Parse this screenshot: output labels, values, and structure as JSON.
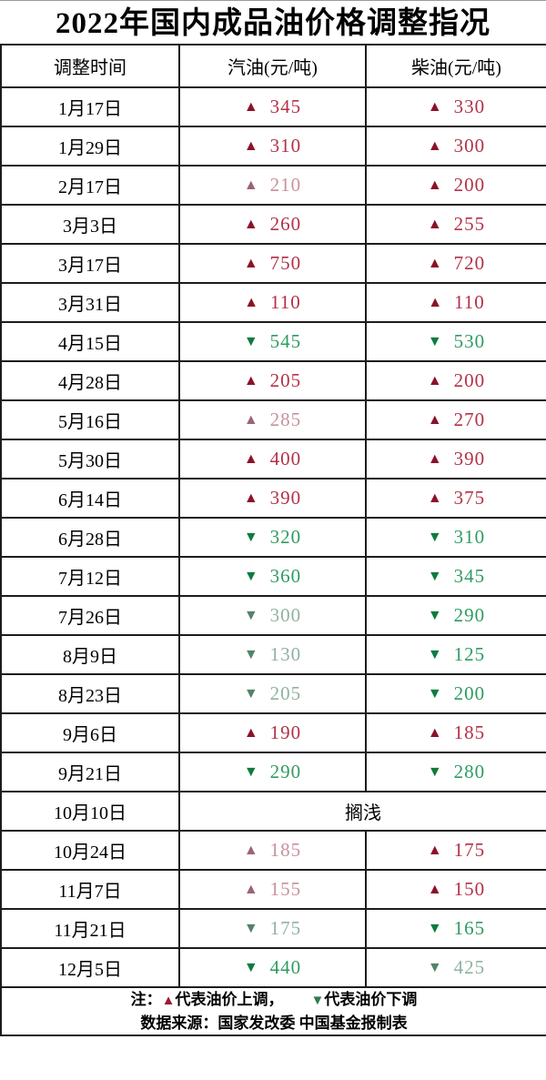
{
  "title": "2022年国内成品油价格调整指况",
  "colors": {
    "border": "#1c1c1c",
    "up_arrow_bright": "#8C1226",
    "up_text_bright": "#B33147",
    "up_arrow_muted": "#9C6471",
    "up_text_muted": "#C9919B",
    "down_arrow_bright": "#0E7B3E",
    "down_text_bright": "#2E9C60",
    "down_arrow_muted": "#538369",
    "down_text_muted": "#8FB3A0",
    "note_up_red": "#9A1B33",
    "note_down_green": "#2F7B52"
  },
  "table": {
    "headers": [
      "调整时间",
      "汽油(元/吨)",
      "柴油(元/吨)"
    ],
    "up_symbol": "▲",
    "down_symbol": "▼",
    "rows": [
      {
        "date": "1月17日",
        "gas": {
          "dir": "up",
          "value": "345",
          "tone": "bright"
        },
        "diesel": {
          "dir": "up",
          "value": "330",
          "tone": "bright"
        }
      },
      {
        "date": "1月29日",
        "gas": {
          "dir": "up",
          "value": "310",
          "tone": "bright"
        },
        "diesel": {
          "dir": "up",
          "value": "300",
          "tone": "bright"
        }
      },
      {
        "date": "2月17日",
        "gas": {
          "dir": "up",
          "value": "210",
          "tone": "muted"
        },
        "diesel": {
          "dir": "up",
          "value": "200",
          "tone": "bright"
        }
      },
      {
        "date": "3月3日",
        "gas": {
          "dir": "up",
          "value": "260",
          "tone": "bright"
        },
        "diesel": {
          "dir": "up",
          "value": "255",
          "tone": "bright"
        }
      },
      {
        "date": "3月17日",
        "gas": {
          "dir": "up",
          "value": "750",
          "tone": "bright"
        },
        "diesel": {
          "dir": "up",
          "value": "720",
          "tone": "bright"
        }
      },
      {
        "date": "3月31日",
        "gas": {
          "dir": "up",
          "value": "110",
          "tone": "bright"
        },
        "diesel": {
          "dir": "up",
          "value": "110",
          "tone": "bright"
        }
      },
      {
        "date": "4月15日",
        "gas": {
          "dir": "down",
          "value": "545",
          "tone": "bright"
        },
        "diesel": {
          "dir": "down",
          "value": "530",
          "tone": "bright"
        }
      },
      {
        "date": "4月28日",
        "gas": {
          "dir": "up",
          "value": "205",
          "tone": "bright"
        },
        "diesel": {
          "dir": "up",
          "value": "200",
          "tone": "bright"
        }
      },
      {
        "date": "5月16日",
        "gas": {
          "dir": "up",
          "value": "285",
          "tone": "muted"
        },
        "diesel": {
          "dir": "up",
          "value": "270",
          "tone": "bright"
        }
      },
      {
        "date": "5月30日",
        "gas": {
          "dir": "up",
          "value": "400",
          "tone": "bright"
        },
        "diesel": {
          "dir": "up",
          "value": "390",
          "tone": "bright"
        }
      },
      {
        "date": "6月14日",
        "gas": {
          "dir": "up",
          "value": "390",
          "tone": "bright"
        },
        "diesel": {
          "dir": "up",
          "value": "375",
          "tone": "bright"
        }
      },
      {
        "date": "6月28日",
        "gas": {
          "dir": "down",
          "value": "320",
          "tone": "bright"
        },
        "diesel": {
          "dir": "down",
          "value": "310",
          "tone": "bright"
        }
      },
      {
        "date": "7月12日",
        "gas": {
          "dir": "down",
          "value": "360",
          "tone": "bright"
        },
        "diesel": {
          "dir": "down",
          "value": "345",
          "tone": "bright"
        }
      },
      {
        "date": "7月26日",
        "gas": {
          "dir": "down",
          "value": "300",
          "tone": "muted"
        },
        "diesel": {
          "dir": "down",
          "value": "290",
          "tone": "bright"
        }
      },
      {
        "date": "8月9日",
        "gas": {
          "dir": "down",
          "value": "130",
          "tone": "muted"
        },
        "diesel": {
          "dir": "down",
          "value": "125",
          "tone": "bright"
        }
      },
      {
        "date": "8月23日",
        "gas": {
          "dir": "down",
          "value": "205",
          "tone": "muted"
        },
        "diesel": {
          "dir": "down",
          "value": "200",
          "tone": "bright"
        }
      },
      {
        "date": "9月6日",
        "gas": {
          "dir": "up",
          "value": "190",
          "tone": "bright"
        },
        "diesel": {
          "dir": "up",
          "value": "185",
          "tone": "bright"
        }
      },
      {
        "date": "9月21日",
        "gas": {
          "dir": "down",
          "value": "290",
          "tone": "bright"
        },
        "diesel": {
          "dir": "down",
          "value": "280",
          "tone": "bright"
        }
      },
      {
        "date": "10月10日",
        "merged": "搁浅"
      },
      {
        "date": "10月24日",
        "gas": {
          "dir": "up",
          "value": "185",
          "tone": "muted"
        },
        "diesel": {
          "dir": "up",
          "value": "175",
          "tone": "bright"
        }
      },
      {
        "date": "11月7日",
        "gas": {
          "dir": "up",
          "value": "155",
          "tone": "muted"
        },
        "diesel": {
          "dir": "up",
          "value": "150",
          "tone": "bright"
        }
      },
      {
        "date": "11月21日",
        "gas": {
          "dir": "down",
          "value": "175",
          "tone": "muted"
        },
        "diesel": {
          "dir": "down",
          "value": "165",
          "tone": "bright"
        }
      },
      {
        "date": "12月5日",
        "gas": {
          "dir": "down",
          "value": "440",
          "tone": "bright"
        },
        "diesel": {
          "dir": "down",
          "value": "425",
          "tone": "muted"
        }
      }
    ]
  },
  "footer": {
    "note_prefix": "注：",
    "up_symbol": "▲",
    "up_legend": "代表油价上调，",
    "down_symbol": "▼",
    "down_legend": "代表油价下调",
    "source": "数据来源：国家发改委  中国基金报制表"
  },
  "chart_data": {
    "type": "table",
    "title": "2022年国内成品油价格调整指况",
    "columns": [
      "调整时间",
      "汽油(元/吨)",
      "柴油(元/吨)"
    ],
    "value_convention": "positive = 上调(up), negative = 下调(down), null = 搁浅(no change)",
    "rows": [
      [
        "1月17日",
        345,
        330
      ],
      [
        "1月29日",
        310,
        300
      ],
      [
        "2月17日",
        210,
        200
      ],
      [
        "3月3日",
        260,
        255
      ],
      [
        "3月17日",
        750,
        720
      ],
      [
        "3月31日",
        110,
        110
      ],
      [
        "4月15日",
        -545,
        -530
      ],
      [
        "4月28日",
        205,
        200
      ],
      [
        "5月16日",
        285,
        270
      ],
      [
        "5月30日",
        400,
        390
      ],
      [
        "6月14日",
        390,
        375
      ],
      [
        "6月28日",
        -320,
        -310
      ],
      [
        "7月12日",
        -360,
        -345
      ],
      [
        "7月26日",
        -300,
        -290
      ],
      [
        "8月9日",
        -130,
        -125
      ],
      [
        "8月23日",
        -205,
        -200
      ],
      [
        "9月6日",
        190,
        185
      ],
      [
        "9月21日",
        -290,
        -280
      ],
      [
        "10月10日",
        null,
        null
      ],
      [
        "10月24日",
        185,
        175
      ],
      [
        "11月7日",
        155,
        150
      ],
      [
        "11月21日",
        -175,
        -165
      ],
      [
        "12月5日",
        -440,
        -425
      ]
    ],
    "notes": [
      "注：▲代表油价上调， ▼代表油价下调",
      "数据来源：国家发改委  中国基金报制表"
    ]
  }
}
